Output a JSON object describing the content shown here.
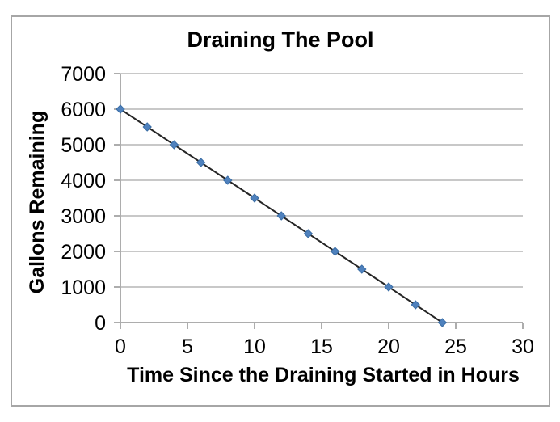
{
  "chart_data": {
    "type": "line",
    "title": "Draining The Pool",
    "xlabel": "Time Since the Draining Started in Hours",
    "ylabel": "Gallons Remaining",
    "x": [
      0,
      2,
      4,
      6,
      8,
      10,
      12,
      14,
      16,
      18,
      20,
      22,
      24
    ],
    "values": [
      6000,
      5500,
      5000,
      4500,
      4000,
      3500,
      3000,
      2500,
      2000,
      1500,
      1000,
      500,
      0
    ],
    "series_name": "Gallons Remaining",
    "xlim": [
      0,
      30
    ],
    "ylim": [
      0,
      7000
    ],
    "x_ticks": [
      0,
      5,
      10,
      15,
      20,
      25,
      30
    ],
    "y_ticks": [
      0,
      1000,
      2000,
      3000,
      4000,
      5000,
      6000,
      7000
    ],
    "grid": "horizontal-only",
    "legend": "none",
    "marker": "diamond",
    "colors": {
      "marker_fill": "#4F81BD",
      "marker_edge": "#3A6DA5",
      "line": "#262626",
      "gridline": "#c8c8c8",
      "axis": "#adadad",
      "border": "#a6a6a6",
      "text": "#000000",
      "background": "#ffffff"
    }
  }
}
